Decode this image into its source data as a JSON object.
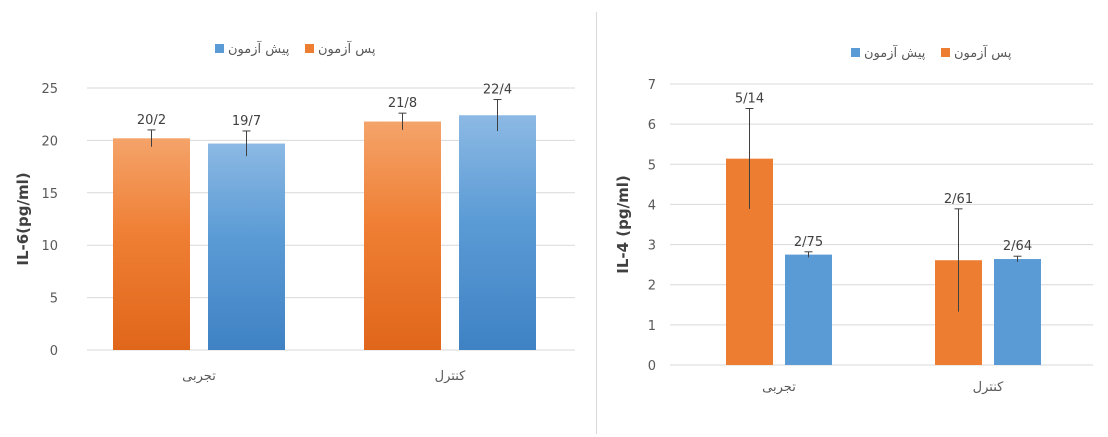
{
  "colors": {
    "pre": "#5b9bd5",
    "post": "#ed7d31",
    "grid": "#d9d9d9",
    "text": "#595959",
    "axisTitle": "#404040",
    "errorBar": "#404040"
  },
  "chart_data": [
    {
      "type": "bar",
      "title": "",
      "ylabel": "IL-6(pg/ml)",
      "xlabel": "",
      "categories": [
        "تجربی",
        "کنترل"
      ],
      "ylim": [
        0,
        25
      ],
      "yticks": [
        "0",
        "5",
        "10",
        "15",
        "20",
        "25"
      ],
      "grid": true,
      "legend_position": "top",
      "legend": [
        "پیش آزمون",
        "پس آزمون"
      ],
      "series": [
        {
          "name": "پس آزمون",
          "values": [
            20.2,
            21.8
          ],
          "labels": [
            "20/2",
            "21/8"
          ],
          "error": [
            0.8,
            0.8
          ],
          "color_key": "post",
          "gradient": true
        },
        {
          "name": "پیش آزمون",
          "values": [
            19.7,
            22.4
          ],
          "labels": [
            "19/7",
            "22/4"
          ],
          "error": [
            1.2,
            1.5
          ],
          "color_key": "pre",
          "gradient": true
        }
      ]
    },
    {
      "type": "bar",
      "title": "",
      "ylabel": "IL-4 (pg/ml)",
      "xlabel": "",
      "categories": [
        "تجربی",
        "کنترل"
      ],
      "ylim": [
        0,
        7
      ],
      "yticks": [
        "0",
        "1",
        "2",
        "3",
        "4",
        "5",
        "6",
        "7"
      ],
      "grid": true,
      "legend_position": "top",
      "legend": [
        "پیش آزمون",
        "پس آزمون"
      ],
      "series": [
        {
          "name": "پس آزمون",
          "values": [
            5.14,
            2.61
          ],
          "labels": [
            "5/14",
            "2/61"
          ],
          "error": [
            1.25,
            1.28
          ],
          "color_key": "post",
          "gradient": false
        },
        {
          "name": "پیش آزمون",
          "values": [
            2.75,
            2.64
          ],
          "labels": [
            "2/75",
            "2/64"
          ],
          "error": [
            0.07,
            0.07
          ],
          "color_key": "pre",
          "gradient": false
        }
      ]
    }
  ]
}
